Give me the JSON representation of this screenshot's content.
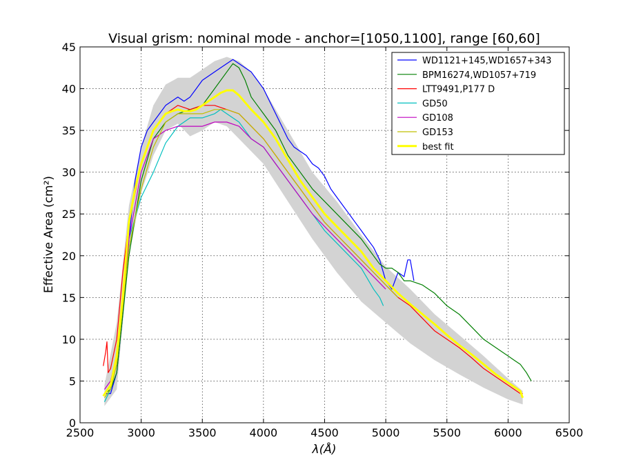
{
  "chart_data": {
    "type": "line",
    "title": "Visual grism: nominal mode - anchor=[1050,1100], range [60,60]",
    "xlabel": "λ(Å)",
    "ylabel": "Effective Area (cm²)",
    "xlim": [
      2500,
      6500
    ],
    "ylim": [
      0,
      45
    ],
    "xticks": [
      "2500",
      "3000",
      "3500",
      "4000",
      "4500",
      "5000",
      "5500",
      "6000",
      "6500"
    ],
    "yticks": [
      "0",
      "5",
      "10",
      "15",
      "20",
      "25",
      "30",
      "35",
      "40",
      "45"
    ],
    "grid": true,
    "legend_position": "top-right",
    "band": {
      "x": [
        2700,
        2800,
        2900,
        3000,
        3100,
        3200,
        3300,
        3400,
        3500,
        3600,
        3700,
        3800,
        3900,
        4000,
        4200,
        4400,
        4600,
        4800,
        5000,
        5200,
        5400,
        5600,
        5800,
        6000,
        6120
      ],
      "upper": [
        4.5,
        12,
        26,
        33,
        38,
        40.5,
        41.3,
        41.3,
        42.3,
        43.3,
        43.8,
        43.3,
        42,
        40,
        35,
        30,
        26.5,
        22.5,
        18.7,
        16,
        13,
        10.5,
        8,
        5.3,
        3.8
      ],
      "lower": [
        2,
        4,
        20,
        27.5,
        32,
        35,
        35.8,
        34.3,
        35,
        36,
        35.5,
        34,
        32.5,
        31,
        26.5,
        22,
        18,
        14.5,
        12,
        9.5,
        7.5,
        5.8,
        4.2,
        2.8,
        2.2
      ]
    },
    "series": [
      {
        "name": "WD1121+145,WD1657+343",
        "color": "#0000ff",
        "dashed": false,
        "x": [
          2710,
          2750,
          2800,
          2850,
          2900,
          2950,
          3000,
          3050,
          3100,
          3150,
          3200,
          3250,
          3300,
          3350,
          3400,
          3450,
          3500,
          3550,
          3600,
          3650,
          3700,
          3750,
          3800,
          3850,
          3900,
          3950,
          4000,
          4050,
          4100,
          4150,
          4200,
          4250,
          4300,
          4350,
          4400,
          4450,
          4500,
          4550,
          4600,
          4650,
          4700,
          4750,
          4800,
          4850,
          4900,
          4950,
          5000,
          5050,
          5100,
          5150,
          5180,
          5200,
          5230
        ],
        "y": [
          3.5,
          3.5,
          6,
          13,
          22,
          29,
          33,
          35,
          36,
          37,
          38,
          38.5,
          39,
          38.5,
          39,
          40,
          41,
          41.5,
          42,
          42.5,
          43,
          43.5,
          43,
          42.5,
          42,
          41,
          40,
          38.5,
          37,
          35.5,
          34,
          33,
          32.5,
          32,
          31,
          30.5,
          29.5,
          28,
          27,
          26,
          25,
          24,
          23,
          22,
          21,
          19.5,
          17,
          16,
          18,
          17.5,
          19.5,
          19.5,
          17
        ]
      },
      {
        "name": "BPM16274,WD1057+719",
        "color": "#007f00",
        "dashed": false,
        "x": [
          2700,
          2750,
          2800,
          2900,
          3000,
          3100,
          3200,
          3300,
          3400,
          3500,
          3600,
          3700,
          3750,
          3800,
          3850,
          3900,
          3950,
          4000,
          4100,
          4200,
          4300,
          4400,
          4500,
          4600,
          4700,
          4800,
          4900,
          4950,
          5000,
          5050,
          5100,
          5150,
          5200,
          5300,
          5400,
          5500,
          5600,
          5700,
          5800,
          5900,
          6000,
          6050,
          6100,
          6150,
          6190
        ],
        "y": [
          3.5,
          4,
          6,
          20,
          29,
          34,
          36,
          37,
          37.5,
          38,
          40,
          42,
          43,
          42.5,
          41,
          39,
          38,
          37,
          35,
          32,
          30,
          28,
          26.5,
          25,
          23.5,
          22,
          20,
          19,
          18.5,
          18.5,
          18,
          17,
          17,
          16.5,
          15.5,
          14,
          13,
          11.5,
          10,
          9,
          8,
          7.5,
          7,
          6,
          5
        ]
      },
      {
        "name": "LTT9491,P177 D",
        "color": "#ff0000",
        "dashed": false,
        "x": [
          2690,
          2710,
          2720,
          2730,
          2750,
          2800,
          2850,
          2900,
          3000,
          3100,
          3200,
          3300,
          3400,
          3500,
          3600,
          3700,
          3800,
          3900,
          4000,
          4100,
          4200,
          4300,
          4400,
          4500,
          4600,
          4700,
          4800,
          4900,
          5000,
          5100,
          5200,
          5300,
          5400,
          5500,
          5600,
          5700,
          5800,
          5900,
          6000,
          6100,
          6120
        ],
        "y": [
          6.8,
          8.5,
          9.7,
          6,
          6.5,
          10,
          18,
          24,
          31,
          35,
          37,
          38,
          37.5,
          38,
          38,
          37.5,
          37,
          35.5,
          34,
          32,
          30,
          28,
          26,
          24,
          22.5,
          21,
          19.5,
          18,
          16.5,
          15,
          14,
          12.5,
          11,
          10,
          9,
          7.8,
          6.5,
          5.5,
          4.5,
          3.5,
          3.5
        ]
      },
      {
        "name": "GD50",
        "color": "#00bfbf",
        "dashed": false,
        "x": [
          2700,
          2750,
          2800,
          2900,
          3000,
          3100,
          3200,
          3300,
          3400,
          3500,
          3600,
          3650,
          3700,
          3800,
          3900,
          4000,
          4100,
          4200,
          4300,
          4400,
          4500,
          4600,
          4700,
          4800,
          4900,
          4950,
          4980
        ],
        "y": [
          2.5,
          4,
          8,
          22,
          27,
          30,
          33.5,
          35.5,
          36.5,
          36.5,
          37,
          37.5,
          37,
          36,
          34,
          33,
          31,
          29,
          27,
          25,
          23,
          21.5,
          20,
          18.5,
          16,
          15,
          14
        ]
      },
      {
        "name": "GD108",
        "color": "#bf00bf",
        "dashed": false,
        "x": [
          2700,
          2750,
          2800,
          2900,
          3000,
          3100,
          3200,
          3300,
          3400,
          3500,
          3600,
          3700,
          3800,
          3900,
          4000,
          4100,
          4200,
          4300,
          4400,
          4500,
          4600,
          4700,
          4800,
          4900,
          5000
        ],
        "y": [
          4,
          5,
          8,
          22,
          30,
          34,
          35,
          35.5,
          35.5,
          35.5,
          36,
          36,
          35.5,
          34,
          33,
          31,
          29,
          27,
          25,
          23.5,
          22,
          20.5,
          19,
          17.5,
          16
        ]
      },
      {
        "name": "GD153",
        "color": "#bfbf00",
        "dashed": false,
        "x": [
          2700,
          2750,
          2800,
          2900,
          3000,
          3100,
          3200,
          3300,
          3400,
          3500,
          3600,
          3700,
          3800,
          3900,
          4000,
          4100,
          4200,
          4300,
          4400,
          4500,
          4600,
          4700,
          4800,
          4900,
          5000,
          5100
        ],
        "y": [
          3,
          4,
          7,
          21,
          28,
          33,
          36,
          37,
          37,
          37,
          37.5,
          37.5,
          37,
          35.5,
          34,
          32,
          30,
          28,
          26,
          24,
          22.5,
          21,
          19.5,
          18,
          16.5,
          15
        ]
      },
      {
        "name": "best fit",
        "color": "#ffff00",
        "dashed": false,
        "x": [
          2690,
          2750,
          2800,
          2850,
          2900,
          2950,
          3000,
          3050,
          3100,
          3150,
          3200,
          3250,
          3300,
          3350,
          3400,
          3450,
          3500,
          3550,
          3600,
          3650,
          3700,
          3750,
          3800,
          3900,
          4000,
          4100,
          4200,
          4300,
          4400,
          4500,
          4600,
          4700,
          4800,
          4900,
          5000,
          5100,
          5200,
          5300,
          5400,
          5500,
          5600,
          5700,
          5800,
          5900,
          6000,
          6100,
          6120
        ],
        "y": [
          3.2,
          4.5,
          8,
          15,
          24,
          28,
          31,
          33,
          35,
          36,
          37,
          37.3,
          37.5,
          37.3,
          37.3,
          37.5,
          38,
          38.5,
          39,
          39.5,
          39.8,
          39.8,
          39.2,
          37.5,
          36,
          34,
          31.5,
          29,
          27,
          25,
          23.5,
          22,
          20.5,
          18.5,
          17,
          15.5,
          14.2,
          13,
          11.8,
          10.5,
          9.3,
          8.2,
          7,
          5.8,
          4.8,
          3.8,
          3.0
        ]
      }
    ]
  }
}
